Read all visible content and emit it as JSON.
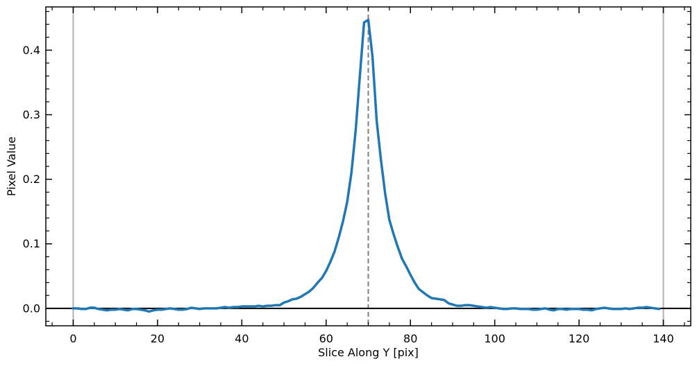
{
  "chart_data": {
    "type": "line",
    "xlabel": "Slice Along Y [pix]",
    "ylabel": "Pixel Value",
    "xlim": [
      -6.5,
      146.5
    ],
    "ylim": [
      -0.027,
      0.467
    ],
    "xticks": [
      0,
      20,
      40,
      60,
      80,
      100,
      120,
      140
    ],
    "xtick_labels": [
      "0",
      "20",
      "40",
      "60",
      "80",
      "100",
      "120",
      "140"
    ],
    "yticks": [
      0.0,
      0.1,
      0.2,
      0.3,
      0.4
    ],
    "ytick_labels": [
      "0.0",
      "0.1",
      "0.2",
      "0.3",
      "0.4"
    ],
    "grid": false,
    "reference_lines": {
      "horizontal_zero": 0.0,
      "vertical_bounds": [
        0,
        140
      ],
      "vertical_center": 70
    },
    "series": [
      {
        "color": "#1f77b4",
        "x": [
          0,
          1,
          2,
          3,
          4,
          5,
          6,
          7,
          8,
          9,
          10,
          11,
          12,
          13,
          14,
          15,
          16,
          17,
          18,
          19,
          20,
          21,
          22,
          23,
          24,
          25,
          26,
          27,
          28,
          29,
          30,
          31,
          32,
          33,
          34,
          35,
          36,
          37,
          38,
          39,
          40,
          41,
          42,
          43,
          44,
          45,
          46,
          47,
          48,
          49,
          50,
          51,
          52,
          53,
          54,
          55,
          56,
          57,
          58,
          59,
          60,
          61,
          62,
          63,
          64,
          65,
          66,
          67,
          68,
          69,
          70,
          71,
          72,
          73,
          74,
          75,
          76,
          77,
          78,
          79,
          80,
          81,
          82,
          83,
          84,
          85,
          86,
          87,
          88,
          89,
          90,
          91,
          92,
          93,
          94,
          95,
          96,
          97,
          98,
          99,
          100,
          101,
          102,
          103,
          104,
          105,
          106,
          107,
          108,
          109,
          110,
          111,
          112,
          113,
          114,
          115,
          116,
          117,
          118,
          119,
          120,
          121,
          122,
          123,
          124,
          125,
          126,
          127,
          128,
          129,
          130,
          131,
          132,
          133,
          134,
          135,
          136,
          137,
          138,
          139
        ],
        "y": [
          0.0,
          0.0,
          -0.001,
          -0.001,
          0.001,
          0.001,
          -0.001,
          -0.002,
          -0.003,
          -0.002,
          -0.002,
          -0.001,
          -0.002,
          -0.003,
          -0.001,
          -0.001,
          -0.002,
          -0.003,
          -0.005,
          -0.003,
          -0.002,
          -0.002,
          -0.001,
          0.0,
          -0.001,
          -0.002,
          -0.002,
          -0.001,
          0.001,
          0.0,
          -0.001,
          0.0,
          0.0,
          0.0,
          0.0,
          0.001,
          0.002,
          0.001,
          0.002,
          0.002,
          0.003,
          0.003,
          0.003,
          0.003,
          0.004,
          0.003,
          0.004,
          0.004,
          0.005,
          0.005,
          0.009,
          0.011,
          0.014,
          0.015,
          0.018,
          0.022,
          0.026,
          0.032,
          0.04,
          0.047,
          0.058,
          0.072,
          0.088,
          0.11,
          0.135,
          0.165,
          0.21,
          0.275,
          0.36,
          0.443,
          0.447,
          0.39,
          0.29,
          0.23,
          0.178,
          0.137,
          0.115,
          0.095,
          0.077,
          0.065,
          0.052,
          0.04,
          0.03,
          0.025,
          0.02,
          0.016,
          0.015,
          0.014,
          0.013,
          0.008,
          0.006,
          0.004,
          0.004,
          0.005,
          0.005,
          0.004,
          0.003,
          0.002,
          0.001,
          0.002,
          0.001,
          0.0,
          -0.001,
          -0.001,
          0.0,
          0.0,
          -0.001,
          -0.001,
          -0.001,
          -0.002,
          -0.002,
          -0.001,
          0.0,
          -0.002,
          -0.003,
          -0.001,
          -0.001,
          -0.002,
          -0.001,
          -0.001,
          -0.001,
          -0.002,
          -0.002,
          -0.003,
          -0.001,
          0.0,
          0.001,
          0.0,
          -0.001,
          -0.001,
          -0.001,
          0.0,
          -0.001,
          0.0,
          0.001,
          0.001,
          0.002,
          0.001,
          0.0,
          -0.001
        ]
      }
    ]
  }
}
